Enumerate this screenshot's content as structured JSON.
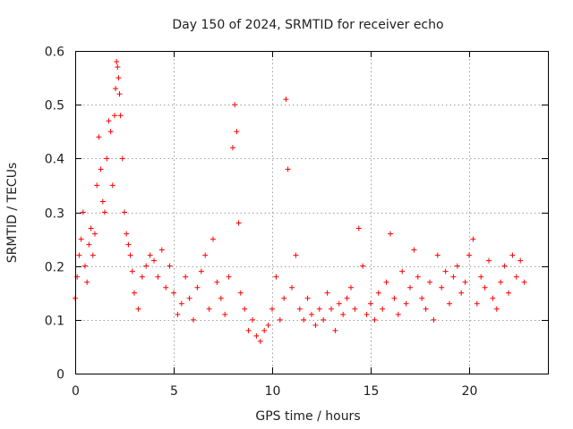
{
  "chart_data": {
    "type": "scatter",
    "title": "Day 150 of 2024, SRMTID for receiver echo",
    "xlabel": "GPS time / hours",
    "ylabel": "SRMTID / TECUs",
    "xlim": [
      0,
      24
    ],
    "ylim": [
      0,
      0.6
    ],
    "xticks": [
      0,
      5,
      10,
      15,
      20
    ],
    "yticks": [
      0,
      0.1,
      0.2,
      0.3,
      0.4,
      0.5,
      0.6
    ],
    "grid": true,
    "marker": "plus",
    "color": "#ff0000",
    "series": [
      {
        "name": "SRMTID",
        "x": [
          0.0,
          0.1,
          0.2,
          0.3,
          0.4,
          0.5,
          0.6,
          0.7,
          0.8,
          0.9,
          1.0,
          1.1,
          1.2,
          1.3,
          1.4,
          1.5,
          1.6,
          1.7,
          1.8,
          1.9,
          2.0,
          2.05,
          2.1,
          2.15,
          2.2,
          2.25,
          2.3,
          2.4,
          2.5,
          2.6,
          2.7,
          2.8,
          2.9,
          3.0,
          3.2,
          3.4,
          3.6,
          3.8,
          4.0,
          4.2,
          4.4,
          4.6,
          4.8,
          5.0,
          5.2,
          5.4,
          5.6,
          5.8,
          6.0,
          6.2,
          6.4,
          6.6,
          6.8,
          7.0,
          7.2,
          7.4,
          7.6,
          7.8,
          8.0,
          8.1,
          8.2,
          8.3,
          8.4,
          8.6,
          8.8,
          9.0,
          9.2,
          9.4,
          9.6,
          9.8,
          10.0,
          10.2,
          10.4,
          10.6,
          10.7,
          10.8,
          11.0,
          11.2,
          11.4,
          11.6,
          11.8,
          12.0,
          12.2,
          12.4,
          12.6,
          12.8,
          13.0,
          13.2,
          13.4,
          13.6,
          13.8,
          14.0,
          14.2,
          14.4,
          14.6,
          14.8,
          15.0,
          15.2,
          15.4,
          15.6,
          15.8,
          16.0,
          16.2,
          16.4,
          16.6,
          16.8,
          17.0,
          17.2,
          17.4,
          17.6,
          17.8,
          18.0,
          18.2,
          18.4,
          18.6,
          18.8,
          19.0,
          19.2,
          19.4,
          19.6,
          19.8,
          20.0,
          20.2,
          20.4,
          20.6,
          20.8,
          21.0,
          21.2,
          21.4,
          21.6,
          21.8,
          22.0,
          22.2,
          22.4,
          22.6,
          22.8
        ],
        "y": [
          0.14,
          0.18,
          0.22,
          0.25,
          0.3,
          0.2,
          0.17,
          0.24,
          0.27,
          0.22,
          0.26,
          0.35,
          0.44,
          0.38,
          0.32,
          0.3,
          0.4,
          0.47,
          0.45,
          0.35,
          0.48,
          0.53,
          0.58,
          0.57,
          0.55,
          0.52,
          0.48,
          0.4,
          0.3,
          0.26,
          0.24,
          0.22,
          0.19,
          0.15,
          0.12,
          0.18,
          0.2,
          0.22,
          0.21,
          0.18,
          0.23,
          0.16,
          0.2,
          0.15,
          0.11,
          0.13,
          0.18,
          0.14,
          0.1,
          0.16,
          0.19,
          0.22,
          0.12,
          0.25,
          0.17,
          0.14,
          0.11,
          0.18,
          0.42,
          0.5,
          0.45,
          0.28,
          0.15,
          0.12,
          0.08,
          0.1,
          0.07,
          0.06,
          0.08,
          0.09,
          0.12,
          0.18,
          0.1,
          0.14,
          0.51,
          0.38,
          0.16,
          0.22,
          0.12,
          0.1,
          0.14,
          0.11,
          0.09,
          0.12,
          0.1,
          0.15,
          0.12,
          0.08,
          0.13,
          0.11,
          0.14,
          0.16,
          0.12,
          0.27,
          0.2,
          0.11,
          0.13,
          0.1,
          0.15,
          0.12,
          0.17,
          0.26,
          0.14,
          0.11,
          0.19,
          0.13,
          0.16,
          0.23,
          0.18,
          0.14,
          0.12,
          0.17,
          0.1,
          0.22,
          0.16,
          0.19,
          0.13,
          0.18,
          0.2,
          0.15,
          0.17,
          0.22,
          0.25,
          0.13,
          0.18,
          0.16,
          0.21,
          0.14,
          0.12,
          0.17,
          0.2,
          0.15,
          0.22,
          0.18,
          0.21,
          0.17
        ]
      }
    ]
  }
}
